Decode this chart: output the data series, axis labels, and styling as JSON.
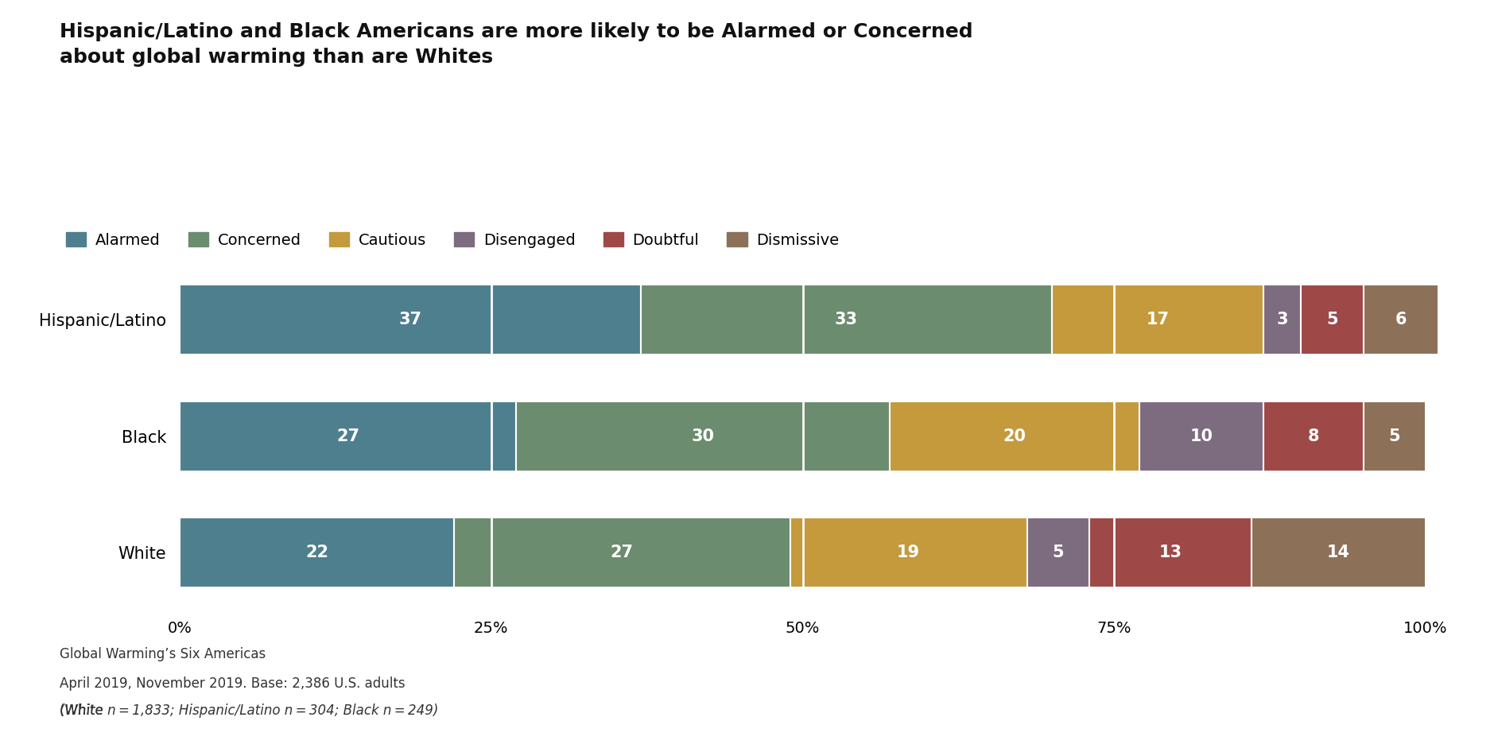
{
  "title": "Hispanic/Latino and Black Americans are more likely to be Alarmed or Concerned\nabout global warming than are Whites",
  "categories": [
    "Hispanic/Latino",
    "Black",
    "White"
  ],
  "segments": [
    "Alarmed",
    "Concerned",
    "Cautious",
    "Disengaged",
    "Doubtful",
    "Dismissive"
  ],
  "colors": [
    "#4e7f8e",
    "#6b8c6e",
    "#c49a3c",
    "#7d6b80",
    "#9e4848",
    "#8c7058"
  ],
  "values": [
    [
      37,
      33,
      17,
      3,
      5,
      6
    ],
    [
      27,
      30,
      20,
      10,
      8,
      5
    ],
    [
      22,
      27,
      19,
      5,
      13,
      14
    ]
  ],
  "xlabel_ticks": [
    "0%",
    "25%",
    "50%",
    "75%",
    "100%"
  ],
  "xlabel_vals": [
    0,
    25,
    50,
    75,
    100
  ],
  "footnote_line1": "Global Warming’s Six Americas",
  "footnote_line2": "April 2019, November 2019. Base: 2,386 U.S. adults",
  "footnote_line3": "(White n = 1,833; Hispanic/Latino n = 304; Black n = 249)",
  "bg_color": "#ffffff",
  "bar_height": 0.6
}
